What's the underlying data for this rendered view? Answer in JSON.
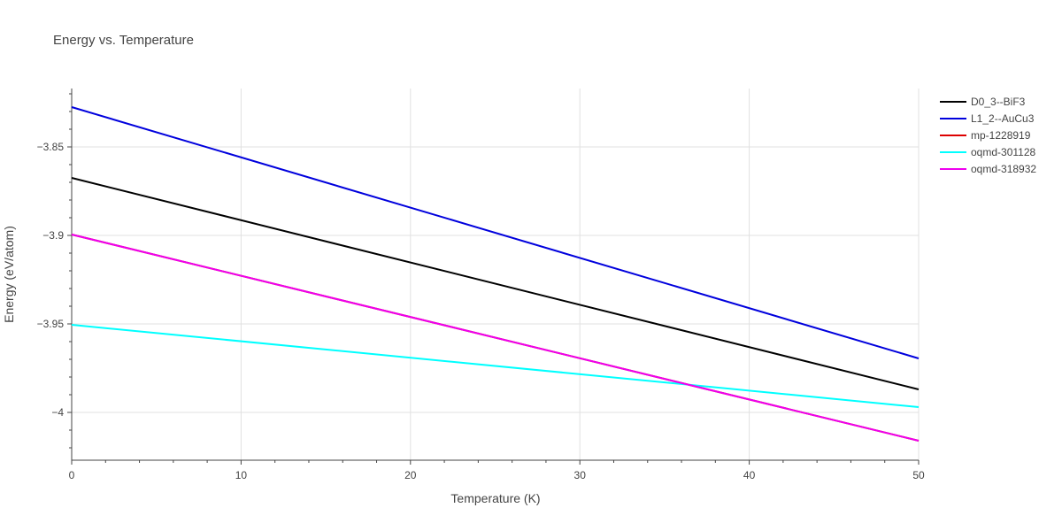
{
  "chart_data": {
    "type": "line",
    "title": "Energy vs. Temperature",
    "xlabel": "Temperature (K)",
    "ylabel": "Energy (eV/atom)",
    "xlim": [
      0,
      50
    ],
    "ylim": [
      -4.027,
      -3.817
    ],
    "x_ticks": [
      0,
      10,
      20,
      30,
      40,
      50
    ],
    "x_tick_labels": [
      "0",
      "10",
      "20",
      "30",
      "40",
      "50"
    ],
    "y_ticks": [
      -4.0,
      -3.95,
      -3.9,
      -3.85
    ],
    "y_tick_labels": [
      "−4",
      "−3.95",
      "−3.9",
      "−3.85"
    ],
    "grid": true,
    "legend_position": "top-right",
    "series": [
      {
        "name": "D0_3--BiF3",
        "color": "#000000",
        "x": [
          0,
          50
        ],
        "y": [
          -3.8675,
          -3.987
        ]
      },
      {
        "name": "L1_2--AuCu3",
        "color": "#0000dd",
        "x": [
          0,
          50
        ],
        "y": [
          -3.8275,
          -3.9695
        ]
      },
      {
        "name": "mp-1228919",
        "color": "#dd0000",
        "x": [
          0,
          50
        ],
        "y": [
          -3.8995,
          -4.016
        ]
      },
      {
        "name": "oqmd-301128",
        "color": "#00ffff",
        "x": [
          0,
          50
        ],
        "y": [
          -3.9505,
          -3.997
        ]
      },
      {
        "name": "oqmd-318932",
        "color": "#ee00ee",
        "x": [
          0,
          50
        ],
        "y": [
          -3.8995,
          -4.016
        ]
      }
    ]
  }
}
